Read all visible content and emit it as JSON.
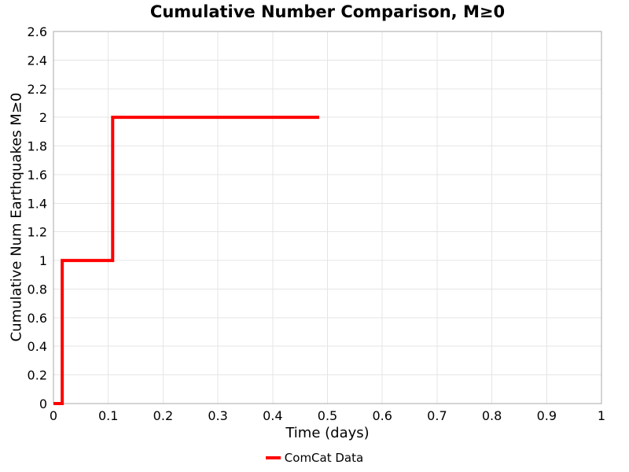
{
  "figure": {
    "background": "#ffffff"
  },
  "chart_data": {
    "type": "line",
    "subtype": "step",
    "title": "Cumulative Number Comparison, M≥0",
    "xlabel": "Time (days)",
    "ylabel": "Cumulative Num Earthquakes M≥0",
    "xlim": [
      0,
      1
    ],
    "ylim": [
      0,
      2.6
    ],
    "grid": true,
    "legend_position": "bottom-center",
    "xticks": [
      {
        "v": 0,
        "label": "0"
      },
      {
        "v": 0.1,
        "label": "0.1"
      },
      {
        "v": 0.2,
        "label": "0.2"
      },
      {
        "v": 0.3,
        "label": "0.3"
      },
      {
        "v": 0.4,
        "label": "0.4"
      },
      {
        "v": 0.5,
        "label": "0.5"
      },
      {
        "v": 0.6,
        "label": "0.6"
      },
      {
        "v": 0.7,
        "label": "0.7"
      },
      {
        "v": 0.8,
        "label": "0.8"
      },
      {
        "v": 0.9,
        "label": "0.9"
      },
      {
        "v": 1,
        "label": "1"
      }
    ],
    "yticks": [
      {
        "v": 0,
        "label": "0"
      },
      {
        "v": 0.2,
        "label": "0.2"
      },
      {
        "v": 0.4,
        "label": "0.4"
      },
      {
        "v": 0.6,
        "label": "0.6"
      },
      {
        "v": 0.8,
        "label": "0.8"
      },
      {
        "v": 1,
        "label": "1"
      },
      {
        "v": 1.2,
        "label": "1.2"
      },
      {
        "v": 1.4,
        "label": "1.4"
      },
      {
        "v": 1.6,
        "label": "1.6"
      },
      {
        "v": 1.8,
        "label": "1.8"
      },
      {
        "v": 2,
        "label": "2"
      },
      {
        "v": 2.2,
        "label": "2.2"
      },
      {
        "v": 2.4,
        "label": "2.4"
      },
      {
        "v": 2.6,
        "label": "2.6"
      }
    ],
    "series": [
      {
        "name": "ComCat Data",
        "color": "#ff0000",
        "line_width": 4,
        "points": [
          [
            0,
            0
          ],
          [
            0.016,
            0
          ],
          [
            0.016,
            1
          ],
          [
            0.108,
            1
          ],
          [
            0.108,
            2
          ],
          [
            0.485,
            2
          ]
        ]
      }
    ],
    "colors": {
      "grid": "#e5e5e5",
      "spine": "#a8a8a8",
      "text": "#000000"
    }
  }
}
